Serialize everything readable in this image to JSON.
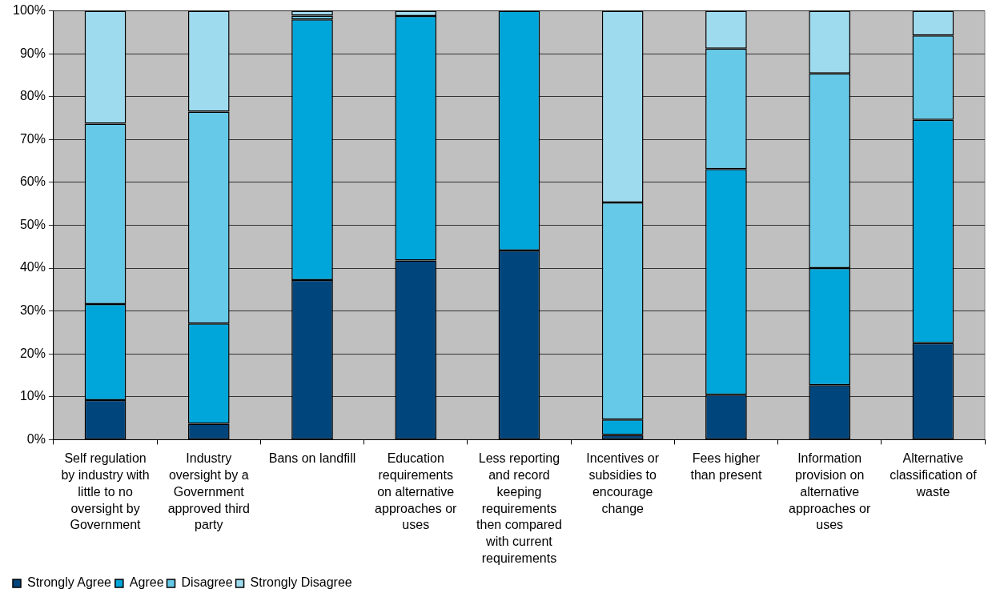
{
  "chart_data": {
    "type": "bar",
    "stacked": true,
    "categories": [
      "Self regulation by industry with little to no oversight by Government",
      "Industry oversight by a Government approved third party",
      "Bans on landfill",
      "Education requirements on alternative approaches or uses",
      "Less reporting and record keeping requirements then compared with current requirements",
      "Incentives or subsidies to encourage change",
      "Fees higher than present",
      "Information provision on alternative approaches or uses",
      "Alternative classification of waste"
    ],
    "series": [
      {
        "name": "Strongly Agree",
        "color": "#00457c",
        "values": [
          9.2,
          3.7,
          37.2,
          41.8,
          44.1,
          1.1,
          10.5,
          12.7,
          22.5
        ]
      },
      {
        "name": "Agree",
        "color": "#00a6da",
        "values": [
          22.4,
          23.4,
          60.8,
          57.0,
          55.9,
          3.6,
          52.6,
          27.3,
          52.1
        ]
      },
      {
        "name": "Disagree",
        "color": "#66c9e8",
        "values": [
          42.1,
          49.4,
          0.9,
          0,
          0,
          50.6,
          28.1,
          45.4,
          19.7
        ]
      },
      {
        "name": "Strongly Disagree",
        "color": "#9fdbef",
        "values": [
          26.3,
          23.5,
          1.1,
          1.2,
          0,
          44.7,
          8.8,
          14.6,
          5.7
        ]
      }
    ],
    "ylim": [
      0,
      100
    ],
    "yticks": [
      {
        "value": 0,
        "label": "0%"
      },
      {
        "value": 10,
        "label": "10%"
      },
      {
        "value": 20,
        "label": "20%"
      },
      {
        "value": 30,
        "label": "30%"
      },
      {
        "value": 40,
        "label": "40%"
      },
      {
        "value": 50,
        "label": "50%"
      },
      {
        "value": 60,
        "label": "60%"
      },
      {
        "value": 70,
        "label": "70%"
      },
      {
        "value": 80,
        "label": "80%"
      },
      {
        "value": 90,
        "label": "90%"
      },
      {
        "value": 100,
        "label": "100%"
      }
    ],
    "grid": "y",
    "legend": "bottom left"
  }
}
